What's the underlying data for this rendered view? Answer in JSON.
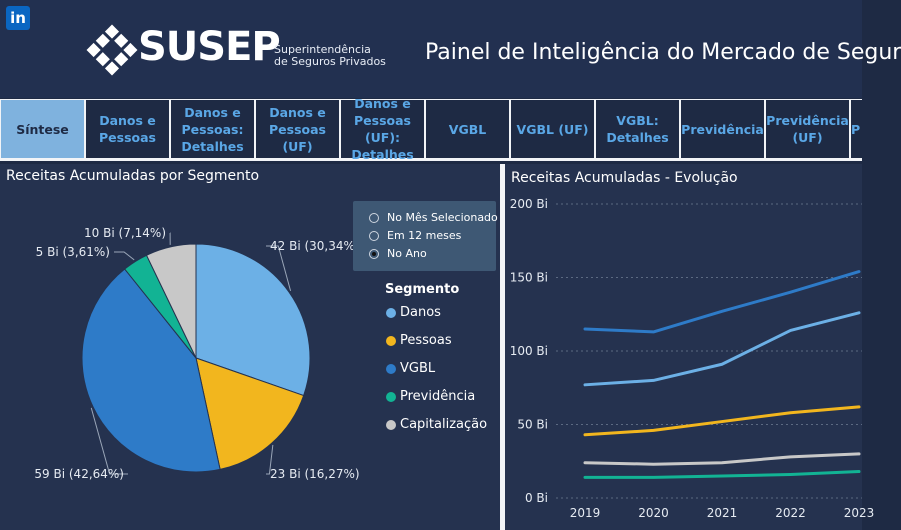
{
  "header": {
    "linkedin_icon": "linkedin-icon",
    "logo_text": "SUSEP",
    "logo_sub_line1": "Superintendência",
    "logo_sub_line2": "de Seguros Privados",
    "title": "Painel de Inteligência do Mercado de Segur"
  },
  "tabs": [
    {
      "label": "Síntese",
      "active": true
    },
    {
      "label": "Danos e Pessoas"
    },
    {
      "label": "Danos e Pessoas: Detalhes"
    },
    {
      "label": "Danos e Pessoas (UF)"
    },
    {
      "label": "Danos e Pessoas (UF): Detalhes"
    },
    {
      "label": "VGBL"
    },
    {
      "label": "VGBL (UF)"
    },
    {
      "label": "VGBL: Detalhes"
    },
    {
      "label": "Previdência"
    },
    {
      "label": "Previdência (UF)"
    },
    {
      "label": "P"
    }
  ],
  "left_panel": {
    "title": "Receitas Acumuladas por Segmento",
    "options": [
      {
        "label": "No Mês Selecionado",
        "selected": false
      },
      {
        "label": "Em 12 meses",
        "selected": false
      },
      {
        "label": "No Ano",
        "selected": true
      }
    ],
    "legend_title": "Segmento"
  },
  "right_panel": {
    "title": "Receitas Acumuladas - Evolução"
  },
  "chart_data": [
    {
      "type": "pie",
      "title": "Receitas Acumuladas por Segmento",
      "legend_title": "Segmento",
      "slices": [
        {
          "name": "Danos",
          "label": "42 Bi (30,34%)",
          "value": 30.34,
          "color": "#6cb0e6"
        },
        {
          "name": "Pessoas",
          "label": "23 Bi (16,27%)",
          "value": 16.27,
          "color": "#f2b61e"
        },
        {
          "name": "VGBL",
          "label": "59 Bi (42,64%)",
          "value": 42.64,
          "color": "#2e7bc8"
        },
        {
          "name": "Previdência",
          "label": "5 Bi (3,61%)",
          "value": 3.61,
          "color": "#12b394"
        },
        {
          "name": "Capitalização",
          "label": "10 Bi (7,14%)",
          "value": 7.14,
          "color": "#c8c8c8"
        }
      ]
    },
    {
      "type": "line",
      "title": "Receitas Acumuladas - Evolução",
      "x": [
        "2019",
        "2020",
        "2021",
        "2022",
        "2023"
      ],
      "ylim": [
        0,
        200
      ],
      "yticks": [
        {
          "value": 0,
          "label": "0 Bi"
        },
        {
          "value": 50,
          "label": "50 Bi"
        },
        {
          "value": 100,
          "label": "100 Bi"
        },
        {
          "value": 150,
          "label": "150 Bi"
        },
        {
          "value": 200,
          "label": "200 Bi"
        }
      ],
      "grid": true,
      "series": [
        {
          "color": "#2e7bc8",
          "values": [
            115,
            113,
            127,
            140,
            154
          ]
        },
        {
          "color": "#6cb0e6",
          "values": [
            77,
            80,
            91,
            114,
            126
          ]
        },
        {
          "color": "#f2b61e",
          "values": [
            43,
            46,
            52,
            58,
            62
          ]
        },
        {
          "color": "#c8c8c8",
          "values": [
            24,
            23,
            24,
            28,
            30
          ]
        },
        {
          "color": "#12b394",
          "values": [
            14,
            14,
            15,
            16,
            18
          ]
        }
      ]
    }
  ]
}
